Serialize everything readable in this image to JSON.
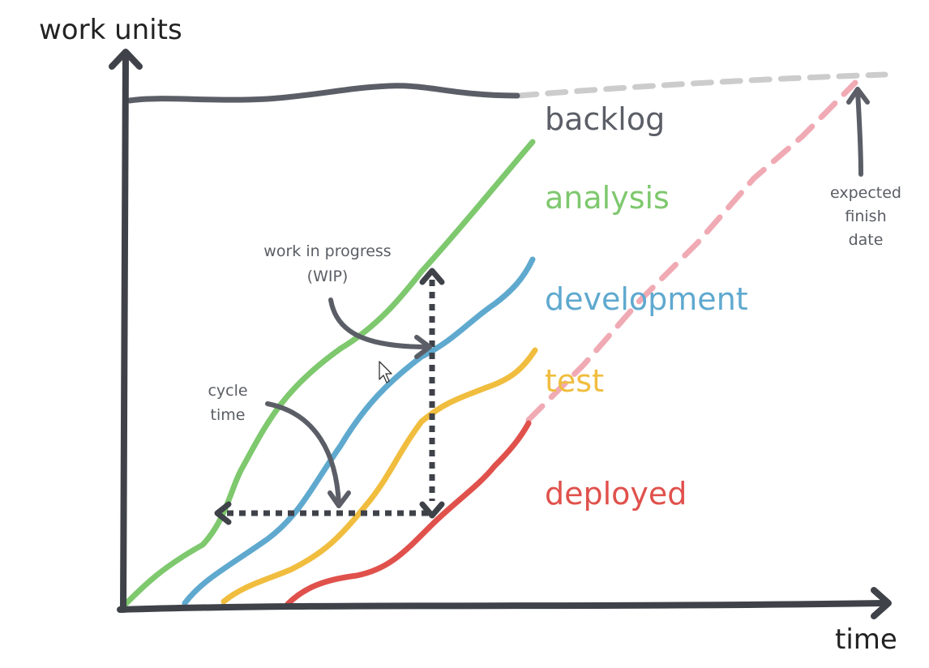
{
  "axes": {
    "y_label": "work units",
    "x_label": "time"
  },
  "bands": [
    {
      "key": "backlog",
      "label": "backlog",
      "color": "#5b5e66"
    },
    {
      "key": "analysis",
      "label": "analysis",
      "color": "#7ec86e"
    },
    {
      "key": "development",
      "label": "development",
      "color": "#5fa9cf"
    },
    {
      "key": "test",
      "label": "test",
      "color": "#f0bd3e"
    },
    {
      "key": "deployed",
      "label": "deployed",
      "color": "#e0514c"
    }
  ],
  "projection": {
    "backlog_color": "#cccccc",
    "deployed_color": "#f0aab4"
  },
  "annotations": {
    "wip": [
      "work in progress",
      "(WIP)"
    ],
    "cycle_time": [
      "cycle",
      "time"
    ],
    "expected_finish": [
      "expected",
      "finish",
      "date"
    ]
  },
  "colors": {
    "axis": "#3f4249",
    "arrow": "#5b5e66",
    "marker": "#3f4249"
  }
}
